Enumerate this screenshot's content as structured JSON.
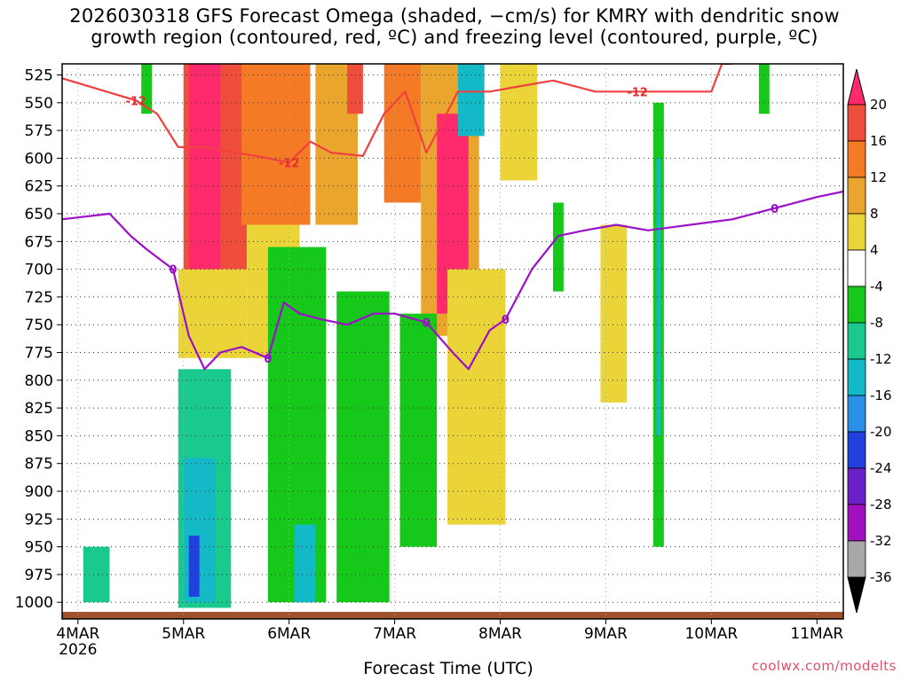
{
  "title_line1": "2026030318 GFS Forecast Omega (shaded, −cm/s) for KMRY with dendritic snow",
  "title_line2": "growth region (contoured, red, ºC) and freezing level (contoured, purple, ºC)",
  "watermark": "coolwx.com/modelts",
  "chart_data": {
    "type": "heatmap",
    "title": "2026030318 GFS Forecast Omega (shaded, −cm/s) for KMRY",
    "xlabel": "Forecast Time (UTC)",
    "ylabel": "Pressure (hPa)",
    "x_ticks": [
      {
        "day": 4,
        "label": "4MAR",
        "sub": "2026"
      },
      {
        "day": 5,
        "label": "5MAR",
        "sub": ""
      },
      {
        "day": 6,
        "label": "6MAR",
        "sub": ""
      },
      {
        "day": 7,
        "label": "7MAR",
        "sub": ""
      },
      {
        "day": 8,
        "label": "8MAR",
        "sub": ""
      },
      {
        "day": 9,
        "label": "9MAR",
        "sub": ""
      },
      {
        "day": 10,
        "label": "10MAR",
        "sub": ""
      },
      {
        "day": 11,
        "label": "11MAR",
        "sub": ""
      }
    ],
    "xlim_day": [
      3.85,
      11.25
    ],
    "ylim_hpa": [
      1015,
      515
    ],
    "y_ticks": [
      525,
      550,
      575,
      600,
      625,
      650,
      675,
      700,
      725,
      750,
      775,
      800,
      825,
      850,
      875,
      900,
      925,
      950,
      975,
      1000
    ],
    "colorbar": {
      "levels": [
        20,
        16,
        12,
        8,
        4,
        -4,
        -8,
        -12,
        -16,
        -20,
        -24,
        -28,
        -32,
        -36
      ],
      "colors": [
        "#ff2a6e",
        "#f04e3c",
        "#f47a26",
        "#e9a52e",
        "#ead437",
        "#ffffff",
        "#16c81a",
        "#19c98e",
        "#13b9c7",
        "#2a8fe6",
        "#2040e0",
        "#6a20c8",
        "#a010c0",
        "#a8a8a8",
        "#000000"
      ]
    },
    "omega_regions": [
      {
        "x": [
          5.0,
          5.6
        ],
        "p": [
          515,
          700
        ],
        "value": 18
      },
      {
        "x": [
          5.05,
          5.35
        ],
        "p": [
          515,
          720
        ],
        "value": 21
      },
      {
        "x": [
          4.95,
          5.6
        ],
        "p": [
          700,
          780
        ],
        "value": 6
      },
      {
        "x": [
          5.55,
          6.2
        ],
        "p": [
          515,
          660
        ],
        "value": 13
      },
      {
        "x": [
          5.6,
          6.1
        ],
        "p": [
          660,
          780
        ],
        "value": 6
      },
      {
        "x": [
          6.25,
          6.65
        ],
        "p": [
          515,
          660
        ],
        "value": 11
      },
      {
        "x": [
          6.55,
          6.7
        ],
        "p": [
          515,
          560
        ],
        "value": 17
      },
      {
        "x": [
          6.9,
          7.25
        ],
        "p": [
          515,
          640
        ],
        "value": 15
      },
      {
        "x": [
          7.25,
          7.8
        ],
        "p": [
          515,
          760
        ],
        "value": 12
      },
      {
        "x": [
          7.4,
          7.7
        ],
        "p": [
          560,
          740
        ],
        "value": 21
      },
      {
        "x": [
          7.6,
          7.9
        ],
        "p": [
          740,
          840
        ],
        "value": 17
      },
      {
        "x": [
          7.5,
          8.05
        ],
        "p": [
          700,
          930
        ],
        "value": 6
      },
      {
        "x": [
          8.0,
          8.35
        ],
        "p": [
          515,
          620
        ],
        "value": 6
      },
      {
        "x": [
          8.95,
          9.2
        ],
        "p": [
          660,
          820
        ],
        "value": 5
      },
      {
        "x": [
          4.95,
          5.45
        ],
        "p": [
          790,
          1005
        ],
        "value": -10
      },
      {
        "x": [
          5.0,
          5.3
        ],
        "p": [
          870,
          1000
        ],
        "value": -15
      },
      {
        "x": [
          5.05,
          5.15
        ],
        "p": [
          940,
          995
        ],
        "value": -22
      },
      {
        "x": [
          5.8,
          6.35
        ],
        "p": [
          680,
          1000
        ],
        "value": -6
      },
      {
        "x": [
          6.05,
          6.25
        ],
        "p": [
          930,
          1000
        ],
        "value": -13
      },
      {
        "x": [
          6.45,
          6.95
        ],
        "p": [
          720,
          1000
        ],
        "value": -6
      },
      {
        "x": [
          7.05,
          7.4
        ],
        "p": [
          740,
          950
        ],
        "value": -6
      },
      {
        "x": [
          7.6,
          7.85
        ],
        "p": [
          515,
          580
        ],
        "value": -14
      },
      {
        "x": [
          8.5,
          8.6
        ],
        "p": [
          640,
          720
        ],
        "value": -6
      },
      {
        "x": [
          9.45,
          9.55
        ],
        "p": [
          550,
          950
        ],
        "value": -7
      },
      {
        "x": [
          9.48,
          9.52
        ],
        "p": [
          600,
          850
        ],
        "value": -13
      },
      {
        "x": [
          4.05,
          4.3
        ],
        "p": [
          950,
          1000
        ],
        "value": -8
      },
      {
        "x": [
          4.6,
          4.7
        ],
        "p": [
          515,
          560
        ],
        "value": -6
      },
      {
        "x": [
          10.45,
          10.55
        ],
        "p": [
          515,
          560
        ],
        "value": -6
      }
    ],
    "dgz_contour_minus12": {
      "label": "-12",
      "x": [
        3.85,
        4.2,
        4.55,
        4.75,
        4.95,
        5.2,
        5.5,
        5.8,
        6.0,
        6.2,
        6.4,
        6.7,
        6.9,
        7.1,
        7.3,
        7.6,
        7.9,
        8.2,
        8.5,
        8.9,
        9.3,
        9.7,
        10.0,
        10.1,
        10.2
      ],
      "p": [
        528,
        538,
        548,
        560,
        590,
        590,
        595,
        600,
        604,
        585,
        595,
        598,
        560,
        540,
        595,
        540,
        540,
        535,
        530,
        540,
        540,
        540,
        540,
        515,
        515
      ]
    },
    "freezing_level_0c": {
      "label": "0",
      "x": [
        3.85,
        4.3,
        4.5,
        4.65,
        4.9,
        5.05,
        5.2,
        5.35,
        5.55,
        5.8,
        5.95,
        6.1,
        6.3,
        6.55,
        6.8,
        7.0,
        7.3,
        7.55,
        7.7,
        7.9,
        8.05,
        8.3,
        8.55,
        8.8,
        9.1,
        9.4,
        9.8,
        10.2,
        10.6,
        11.0,
        11.25
      ],
      "p": [
        655,
        650,
        670,
        682,
        700,
        760,
        790,
        775,
        770,
        780,
        730,
        740,
        745,
        750,
        740,
        740,
        748,
        775,
        790,
        755,
        745,
        700,
        670,
        665,
        660,
        665,
        660,
        655,
        645,
        635,
        630
      ]
    }
  }
}
